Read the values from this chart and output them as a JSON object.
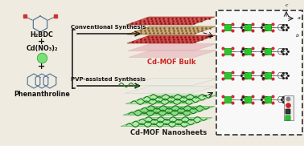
{
  "bg_color": "#f0ebe0",
  "left_panel": {
    "h2bdc_label": "H₂BDC",
    "cd_label": "Cd(NO₃)₂",
    "plus1": "+",
    "plus2": "+",
    "phen_label": "Phenanthroline",
    "green_dot_color": "#7adf7a"
  },
  "arrows": {
    "conventional": "Conventional Synthesis",
    "pvp": "PVP-assisted Synthesis"
  },
  "bulk_label": "Cd-MOF Bulk",
  "nanosheet_label": "Cd-MOF Nanosheets",
  "bulk_tan": "#c8a878",
  "bulk_red": "#c83030",
  "bulk_pink": "#e8b0b8",
  "ns_green1": "#7ada7a",
  "ns_green2": "#a0eca0",
  "ns_white": "#e8f0e8",
  "box_bg": "#ffffff",
  "crystal_green": "#22cc22",
  "crystal_dark": "#333333",
  "crystal_red": "#cc2222",
  "crystal_grey": "#888888",
  "crystal_white": "#dddddd"
}
